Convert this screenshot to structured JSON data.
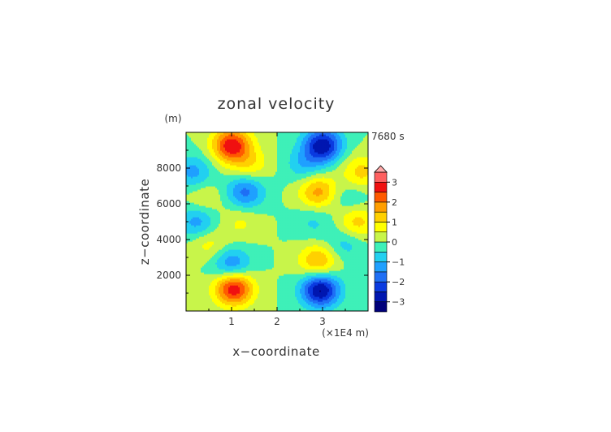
{
  "chart_data": {
    "type": "heatmap",
    "title": "zonal velocity",
    "xlabel": "x−coordinate",
    "ylabel": "z−coordinate",
    "x_unit": "(×1E4 m)",
    "y_unit": "(m)",
    "time_label": "7680 s",
    "xlim": [
      0,
      4
    ],
    "ylim": [
      0,
      10000
    ],
    "x_ticks": [
      1,
      2,
      3
    ],
    "x_tick_labels": [
      "1",
      "2",
      "3"
    ],
    "y_ticks": [
      2000,
      4000,
      6000,
      8000
    ],
    "y_tick_labels": [
      "2000",
      "4000",
      "6000",
      "8000"
    ],
    "colorbar": {
      "levels": [
        -3.5,
        -3,
        -2.5,
        -2,
        -1.5,
        -1,
        -0.5,
        0,
        0.5,
        1,
        1.5,
        2,
        2.5,
        3,
        3.5
      ],
      "colors": [
        "#00007a",
        "#0016b0",
        "#0a3ae0",
        "#1f6ff5",
        "#1fa0ff",
        "#22d0f0",
        "#3ef0b8",
        "#c8f54a",
        "#ffff00",
        "#ffd000",
        "#ff9e00",
        "#ff5a00",
        "#f01010",
        "#ff6060",
        "#ffaaaa"
      ],
      "tick_values": [
        3,
        2,
        1,
        0,
        -1,
        -2,
        -3
      ],
      "tick_labels": [
        "3",
        "2",
        "1",
        "0",
        "−1",
        "−2",
        "−3"
      ],
      "extend": "max"
    },
    "field_features": [
      {
        "x": 1.0,
        "z": 9300,
        "value": 2.9
      },
      {
        "x": 3.0,
        "z": 9300,
        "value": -2.9
      },
      {
        "x": 1.05,
        "z": 1300,
        "value": 3.0
      },
      {
        "x": 2.95,
        "z": 1200,
        "value": -3.1
      },
      {
        "x": 1.0,
        "z": 2600,
        "value": -1.6
      },
      {
        "x": 2.9,
        "z": 2800,
        "value": 1.6
      },
      {
        "x": 1.3,
        "z": 6700,
        "value": -1.7
      },
      {
        "x": 2.9,
        "z": 6700,
        "value": 1.7
      },
      {
        "x": 1.4,
        "z": 8200,
        "value": 0.9
      },
      {
        "x": 2.6,
        "z": 8200,
        "value": -0.9
      },
      {
        "x": 0.15,
        "z": 7800,
        "value": -1.2
      },
      {
        "x": 3.85,
        "z": 7800,
        "value": 1.2
      },
      {
        "x": 0.25,
        "z": 5000,
        "value": -1.3
      },
      {
        "x": 3.75,
        "z": 5000,
        "value": 1.3
      },
      {
        "x": 0.5,
        "z": 3800,
        "value": 0.8
      },
      {
        "x": 3.5,
        "z": 3800,
        "value": -0.8
      },
      {
        "x": 1.2,
        "z": 5000,
        "value": 0.6
      },
      {
        "x": 2.8,
        "z": 5000,
        "value": -0.6
      },
      {
        "x": 0.4,
        "z": 6300,
        "value": 0.6
      },
      {
        "x": 3.6,
        "z": 6300,
        "value": -0.6
      }
    ]
  }
}
